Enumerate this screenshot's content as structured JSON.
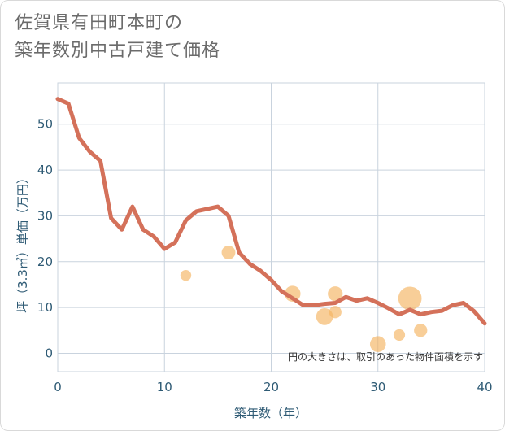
{
  "title_lines": [
    "佐賀県有田町本町の",
    "築年数別中古戸建て価格"
  ],
  "chart_data": {
    "type": "line+scatter",
    "title": "佐賀県有田町本町の築年数別中古戸建て価格",
    "xlabel": "築年数（年）",
    "ylabel": "坪（3.3㎡）単価（万円）",
    "xlim": [
      0,
      40
    ],
    "ylim": [
      -4,
      59
    ],
    "xticks": [
      0,
      10,
      20,
      30,
      40
    ],
    "yticks": [
      0,
      10,
      20,
      30,
      40,
      50
    ],
    "grid": true,
    "note": "円の大きさは、取引のあった物件面積を示す",
    "line_color": "#d4715a",
    "bubble_color": "#f5b461",
    "line": {
      "x": [
        0,
        1,
        2,
        3,
        4,
        5,
        6,
        7,
        8,
        9,
        10,
        11,
        12,
        13,
        14,
        15,
        16,
        17,
        18,
        19,
        20,
        21,
        22,
        23,
        24,
        25,
        26,
        27,
        28,
        29,
        30,
        31,
        32,
        33,
        34,
        35,
        36,
        37,
        38,
        39,
        40
      ],
      "y": [
        55.5,
        54.5,
        47,
        44,
        42,
        29.5,
        27,
        32,
        27,
        25.5,
        22.8,
        24.2,
        29,
        31,
        31.5,
        32,
        30,
        22,
        19.5,
        18,
        16,
        13.5,
        12,
        10.5,
        10.5,
        10.8,
        11,
        12.3,
        11.5,
        12,
        11,
        9.8,
        8.5,
        9.5,
        8.5,
        9,
        9.3,
        10.5,
        11,
        9.2,
        6.5
      ]
    },
    "bubbles": [
      {
        "x": 12,
        "y": 17,
        "size": 1
      },
      {
        "x": 16,
        "y": 22,
        "size": 2
      },
      {
        "x": 22,
        "y": 13,
        "size": 3
      },
      {
        "x": 25,
        "y": 8,
        "size": 3.5
      },
      {
        "x": 26,
        "y": 13,
        "size": 2.5
      },
      {
        "x": 26,
        "y": 9,
        "size": 1.5
      },
      {
        "x": 30,
        "y": 2,
        "size": 3
      },
      {
        "x": 32,
        "y": 4,
        "size": 1.2
      },
      {
        "x": 33,
        "y": 12,
        "size": 8
      },
      {
        "x": 34,
        "y": 5,
        "size": 1.8
      }
    ]
  }
}
